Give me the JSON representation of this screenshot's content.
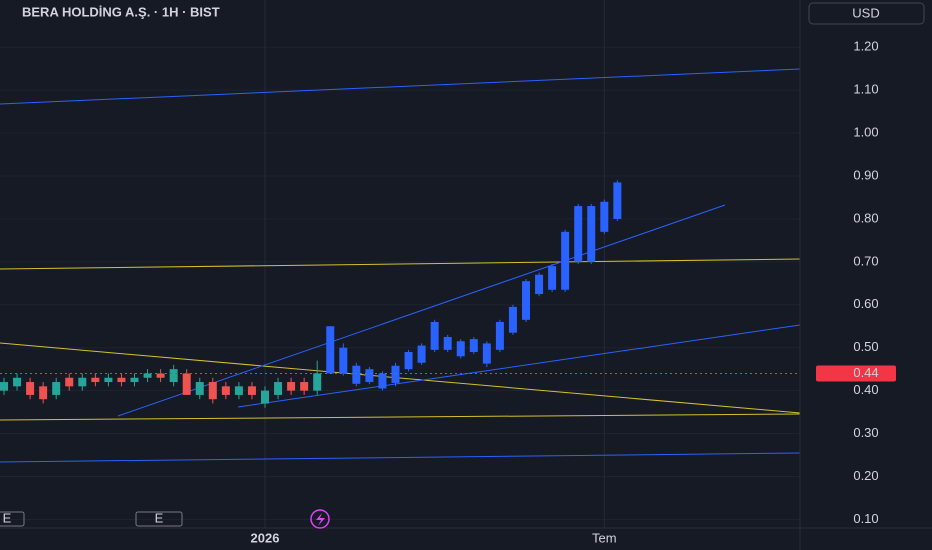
{
  "chart_data": {
    "type": "candlestick",
    "title": "BERA HOLDİNG A.Ş. · 1H · BIST",
    "currency": "USD",
    "categories": [
      null,
      null,
      null,
      null,
      null,
      null,
      null,
      null,
      null,
      null,
      null,
      null,
      null,
      null,
      null,
      null,
      null,
      null,
      null,
      null,
      "2026",
      null,
      null,
      null,
      null,
      null,
      null,
      null,
      null,
      null,
      null,
      null,
      null,
      null,
      null,
      null,
      null,
      null,
      null,
      null,
      null,
      null,
      null,
      null,
      null,
      null,
      "Tem",
      null
    ],
    "open": [
      0.4,
      0.41,
      0.42,
      0.41,
      0.39,
      0.43,
      0.41,
      0.43,
      0.42,
      0.43,
      0.42,
      0.43,
      0.44,
      0.42,
      0.44,
      0.39,
      0.42,
      0.41,
      0.39,
      0.41,
      0.37,
      0.39,
      0.42,
      0.42,
      0.4,
      0.44,
      0.44,
      0.416,
      0.42,
      0.405,
      0.418,
      0.45,
      0.465,
      0.495,
      0.495,
      0.48,
      0.49,
      0.463,
      0.495,
      0.535,
      0.565,
      0.625,
      0.635,
      0.635,
      0.7,
      0.7,
      0.77,
      0.8
    ],
    "high": [
      0.43,
      0.44,
      0.43,
      0.42,
      0.43,
      0.44,
      0.44,
      0.44,
      0.44,
      0.44,
      0.44,
      0.45,
      0.45,
      0.46,
      0.45,
      0.43,
      0.43,
      0.42,
      0.42,
      0.42,
      0.41,
      0.43,
      0.43,
      0.43,
      0.47,
      0.55,
      0.51,
      0.465,
      0.455,
      0.445,
      0.465,
      0.495,
      0.51,
      0.565,
      0.53,
      0.52,
      0.525,
      0.515,
      0.565,
      0.6,
      0.66,
      0.675,
      0.695,
      0.775,
      0.835,
      0.835,
      0.845,
      0.89
    ],
    "low": [
      0.39,
      0.4,
      0.38,
      0.37,
      0.38,
      0.4,
      0.4,
      0.41,
      0.41,
      0.41,
      0.41,
      0.42,
      0.42,
      0.41,
      0.39,
      0.38,
      0.37,
      0.38,
      0.38,
      0.38,
      0.36,
      0.38,
      0.39,
      0.39,
      0.39,
      0.44,
      0.435,
      0.41,
      0.415,
      0.4,
      0.41,
      0.445,
      0.46,
      0.49,
      0.49,
      0.475,
      0.485,
      0.455,
      0.49,
      0.53,
      0.56,
      0.62,
      0.63,
      0.63,
      0.695,
      0.695,
      0.765,
      0.795
    ],
    "close": [
      0.42,
      0.43,
      0.39,
      0.38,
      0.42,
      0.41,
      0.43,
      0.42,
      0.43,
      0.42,
      0.43,
      0.44,
      0.43,
      0.45,
      0.39,
      0.42,
      0.38,
      0.39,
      0.41,
      0.39,
      0.4,
      0.42,
      0.4,
      0.4,
      0.44,
      0.55,
      0.5,
      0.458,
      0.45,
      0.44,
      0.458,
      0.49,
      0.505,
      0.56,
      0.525,
      0.515,
      0.52,
      0.51,
      0.56,
      0.595,
      0.655,
      0.67,
      0.69,
      0.77,
      0.83,
      0.83,
      0.84,
      0.885
    ],
    "candle_colors": [
      "#26a69a",
      "#26a69a",
      "#ef5350",
      "#ef5350",
      "#26a69a",
      "#ef5350",
      "#26a69a",
      "#ef5350",
      "#26a69a",
      "#ef5350",
      "#26a69a",
      "#26a69a",
      "#ef5350",
      "#26a69a",
      "#ef5350",
      "#26a69a",
      "#ef5350",
      "#ef5350",
      "#26a69a",
      "#ef5350",
      "#26a69a",
      "#26a69a",
      "#ef5350",
      "#ef5350",
      "#26a69a",
      "#2962ff",
      "#2962ff",
      "#2962ff",
      "#2962ff",
      "#2962ff",
      "#2962ff",
      "#2962ff",
      "#2962ff",
      "#2962ff",
      "#2962ff",
      "#2962ff",
      "#2962ff",
      "#2962ff",
      "#2962ff",
      "#2962ff",
      "#2962ff",
      "#2962ff",
      "#2962ff",
      "#2962ff",
      "#2962ff",
      "#2962ff",
      "#2962ff",
      "#2962ff"
    ],
    "ylim": [
      0.08,
      1.31
    ],
    "yticks": [
      {
        "value": 0.1,
        "label": "0.10"
      },
      {
        "value": 0.2,
        "label": "0.20"
      },
      {
        "value": 0.3,
        "label": "0.30"
      },
      {
        "value": 0.4,
        "label": "0.40"
      },
      {
        "value": 0.5,
        "label": "0.50"
      },
      {
        "value": 0.6,
        "label": "0.60"
      },
      {
        "value": 0.7,
        "label": "0.70"
      },
      {
        "value": 0.8,
        "label": "0.80"
      },
      {
        "value": 0.9,
        "label": "0.90"
      },
      {
        "value": 1.0,
        "label": "1.00"
      },
      {
        "value": 1.1,
        "label": "1.10"
      },
      {
        "value": 1.2,
        "label": "1.20"
      }
    ],
    "last_price": 0.44,
    "last_price_color": "#f23645",
    "event_labels": [
      "E",
      "E"
    ],
    "grid": true
  }
}
